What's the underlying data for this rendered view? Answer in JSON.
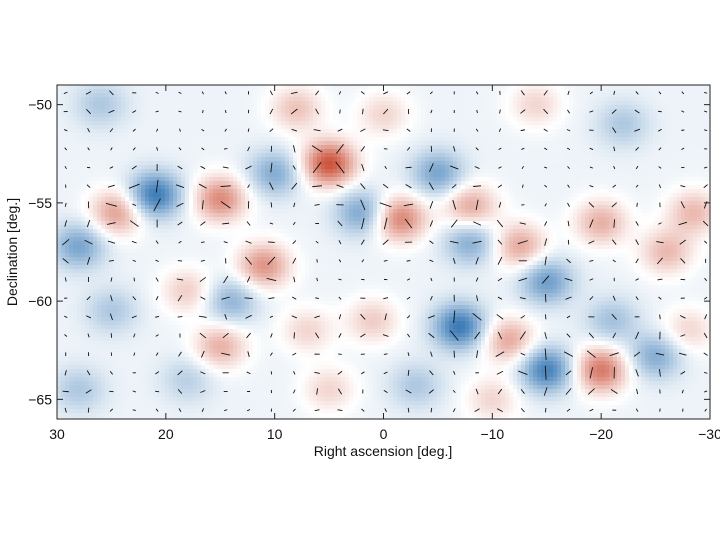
{
  "chart_data": {
    "type": "heatmap",
    "title": "",
    "xlabel": "Right ascension [deg.]",
    "ylabel": "Declination [deg.]",
    "xlim": [
      30,
      -30
    ],
    "ylim": [
      -66,
      -49
    ],
    "x_axis_reversed": true,
    "x_ticks": [
      30,
      20,
      10,
      0,
      -10,
      -20,
      -30
    ],
    "x_tick_labels": [
      "30",
      "20",
      "10",
      "0",
      "−10",
      "−20",
      "−30"
    ],
    "y_ticks": [
      -50,
      -55,
      -60,
      -65
    ],
    "y_tick_labels": [
      "−50",
      "−55",
      "−60",
      "−65"
    ],
    "grid": false,
    "legend": "none",
    "colors": {
      "positive": "#c8442b",
      "negative": "#2a6fb0",
      "zero": "#ffffff",
      "vector": "#111111"
    },
    "overlay": "polarization headless vectors (line segments)",
    "features": [
      {
        "ra": 28,
        "dec": -57.2,
        "amp": -0.55
      },
      {
        "ra": 24.5,
        "dec": -55.5,
        "amp": 0.6
      },
      {
        "ra": 21,
        "dec": -54.6,
        "amp": -0.85
      },
      {
        "ra": 15,
        "dec": -54.8,
        "amp": 0.7
      },
      {
        "ra": 10,
        "dec": -53.5,
        "amp": -0.5
      },
      {
        "ra": 5,
        "dec": -53.0,
        "amp": 1.0
      },
      {
        "ra": 2,
        "dec": -55.5,
        "amp": -0.55
      },
      {
        "ra": -1.5,
        "dec": -55.8,
        "amp": 0.75
      },
      {
        "ra": -5,
        "dec": -53.5,
        "amp": -0.55
      },
      {
        "ra": -8,
        "dec": -55.2,
        "amp": 0.55
      },
      {
        "ra": -8,
        "dec": -57.0,
        "amp": -0.5
      },
      {
        "ra": -12.5,
        "dec": -57.2,
        "amp": 0.55
      },
      {
        "ra": -15,
        "dec": -59.0,
        "amp": -0.6
      },
      {
        "ra": -20,
        "dec": -56.0,
        "amp": 0.5
      },
      {
        "ra": -26,
        "dec": -57.5,
        "amp": 0.45
      },
      {
        "ra": -28.5,
        "dec": -55.5,
        "amp": 0.45
      },
      {
        "ra": 11,
        "dec": -58.2,
        "amp": 0.65
      },
      {
        "ra": 14,
        "dec": -60.0,
        "amp": -0.45
      },
      {
        "ra": 18,
        "dec": -59.5,
        "amp": 0.35
      },
      {
        "ra": 25,
        "dec": -60.5,
        "amp": -0.3
      },
      {
        "ra": 15,
        "dec": -62.3,
        "amp": 0.5
      },
      {
        "ra": 7,
        "dec": -61.5,
        "amp": 0.3
      },
      {
        "ra": 1,
        "dec": -61.0,
        "amp": 0.35
      },
      {
        "ra": -7,
        "dec": -61.3,
        "amp": -0.85
      },
      {
        "ra": -11.5,
        "dec": -62.0,
        "amp": 0.55
      },
      {
        "ra": -15,
        "dec": -63.5,
        "amp": -0.8
      },
      {
        "ra": -20,
        "dec": -63.5,
        "amp": 0.8
      },
      {
        "ra": -21,
        "dec": -61.0,
        "amp": -0.35
      },
      {
        "ra": -25,
        "dec": -62.8,
        "amp": -0.5
      },
      {
        "ra": -28,
        "dec": -61.5,
        "amp": 0.3
      },
      {
        "ra": 28,
        "dec": -64.5,
        "amp": -0.3
      },
      {
        "ra": 18,
        "dec": -64.0,
        "amp": -0.25
      },
      {
        "ra": 5,
        "dec": -64.5,
        "amp": 0.3
      },
      {
        "ra": -3,
        "dec": -64.3,
        "amp": -0.3
      },
      {
        "ra": -10,
        "dec": -65.0,
        "amp": 0.3
      },
      {
        "ra": 26,
        "dec": -50.0,
        "amp": -0.3
      },
      {
        "ra": 8,
        "dec": -50.2,
        "amp": 0.4
      },
      {
        "ra": 0,
        "dec": -50.5,
        "amp": 0.3
      },
      {
        "ra": -14,
        "dec": -50.0,
        "amp": 0.3
      },
      {
        "ra": -22,
        "dec": -51.0,
        "amp": -0.3
      }
    ]
  }
}
